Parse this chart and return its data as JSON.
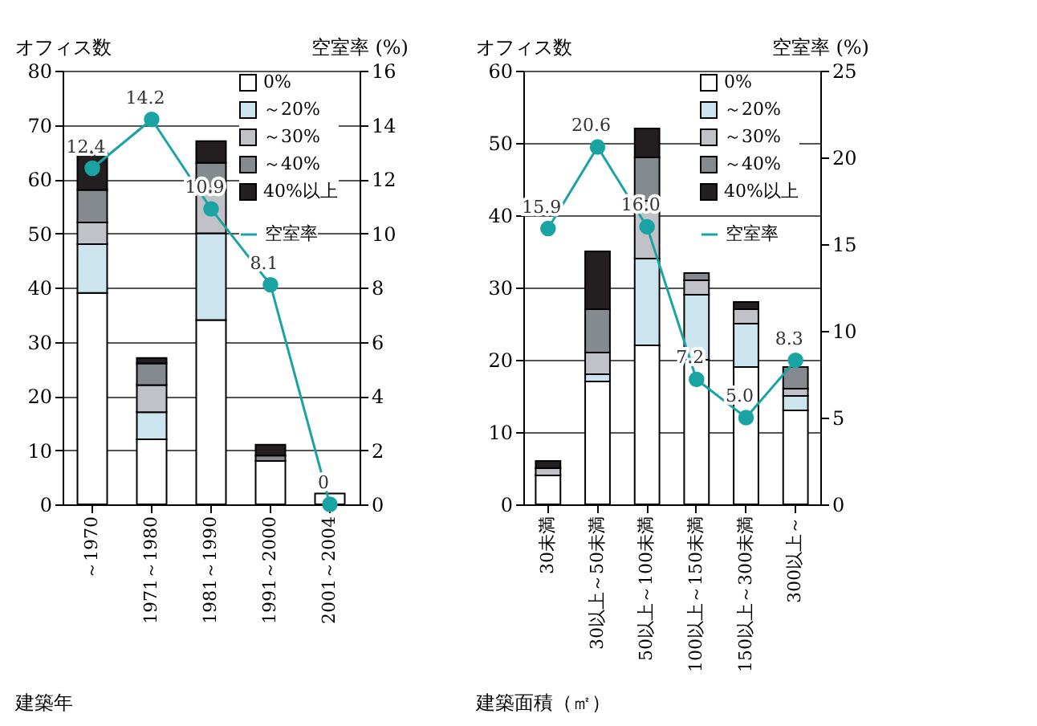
{
  "chart_data": [
    {
      "type": "bar",
      "stacked": true,
      "xlabel": "建築年",
      "ylabel": "オフィス数",
      "y2label": "空室率 (%)",
      "categories": [
        "～1970",
        "1971～1980",
        "1981～1990",
        "1991～2000",
        "2001～2004"
      ],
      "series": [
        {
          "name": "0%",
          "color": "#ffffff",
          "values": [
            39,
            12,
            34,
            8,
            2
          ]
        },
        {
          "name": "～20%",
          "color": "#cce4ee",
          "values": [
            9,
            5,
            16,
            0,
            0
          ]
        },
        {
          "name": "～30%",
          "color": "#c0c2c8",
          "values": [
            4,
            5,
            8,
            0,
            0
          ]
        },
        {
          "name": "～40%",
          "color": "#858a8f",
          "values": [
            6,
            4,
            5,
            1,
            0
          ]
        },
        {
          "name": "40%以上",
          "color": "#231f20",
          "values": [
            7,
            1,
            4,
            2,
            0
          ]
        },
        {
          "name": "空室率",
          "type": "line",
          "axis": "y2",
          "marker": "circle",
          "color": "#1aa3a3",
          "values": [
            12.4,
            14.2,
            10.9,
            8.1,
            0
          ],
          "value_labels": [
            "12.4",
            "14.2",
            "10.9",
            "8.1",
            "0"
          ]
        }
      ],
      "ylim": [
        0,
        80
      ],
      "yticks": [
        0,
        10,
        20,
        30,
        40,
        50,
        60,
        70,
        80
      ],
      "y2lim": [
        0,
        16
      ],
      "y2ticks": [
        0,
        2,
        4,
        6,
        8,
        10,
        12,
        14,
        16
      ],
      "grid": "y",
      "legend": "top right"
    },
    {
      "type": "bar",
      "stacked": true,
      "xlabel": "建築面積（㎡）",
      "ylabel": "オフィス数",
      "y2label": "空室率 (%)",
      "categories": [
        "30未満",
        "30以上～50未満",
        "50以上～100未満",
        "100以上～150未満",
        "150以上～300未満",
        "300以上～"
      ],
      "series": [
        {
          "name": "0%",
          "color": "#ffffff",
          "values": [
            4,
            17,
            22,
            20,
            19,
            13
          ]
        },
        {
          "name": "～20%",
          "color": "#cce4ee",
          "values": [
            0,
            1,
            12,
            9,
            6,
            2
          ]
        },
        {
          "name": "～30%",
          "color": "#c0c2c8",
          "values": [
            1,
            3,
            8,
            2,
            2,
            1
          ]
        },
        {
          "name": "～40%",
          "color": "#858a8f",
          "values": [
            0,
            6,
            6,
            1,
            0,
            3
          ]
        },
        {
          "name": "40%以上",
          "color": "#231f20",
          "values": [
            1,
            8,
            4,
            0,
            1,
            0
          ]
        },
        {
          "name": "空室率",
          "type": "line",
          "axis": "y2",
          "marker": "circle",
          "color": "#1aa3a3",
          "values": [
            15.9,
            20.6,
            16.0,
            7.2,
            5.0,
            8.3
          ],
          "value_labels": [
            "15.9",
            "20.6",
            "16.0",
            "7.2",
            "5.0",
            "8.3"
          ]
        }
      ],
      "ylim": [
        0,
        60
      ],
      "yticks": [
        0,
        10,
        20,
        30,
        40,
        50,
        60
      ],
      "y2lim": [
        0,
        25
      ],
      "y2ticks": [
        0,
        5,
        10,
        15,
        20,
        25
      ],
      "grid": "y",
      "legend": "top right"
    }
  ]
}
